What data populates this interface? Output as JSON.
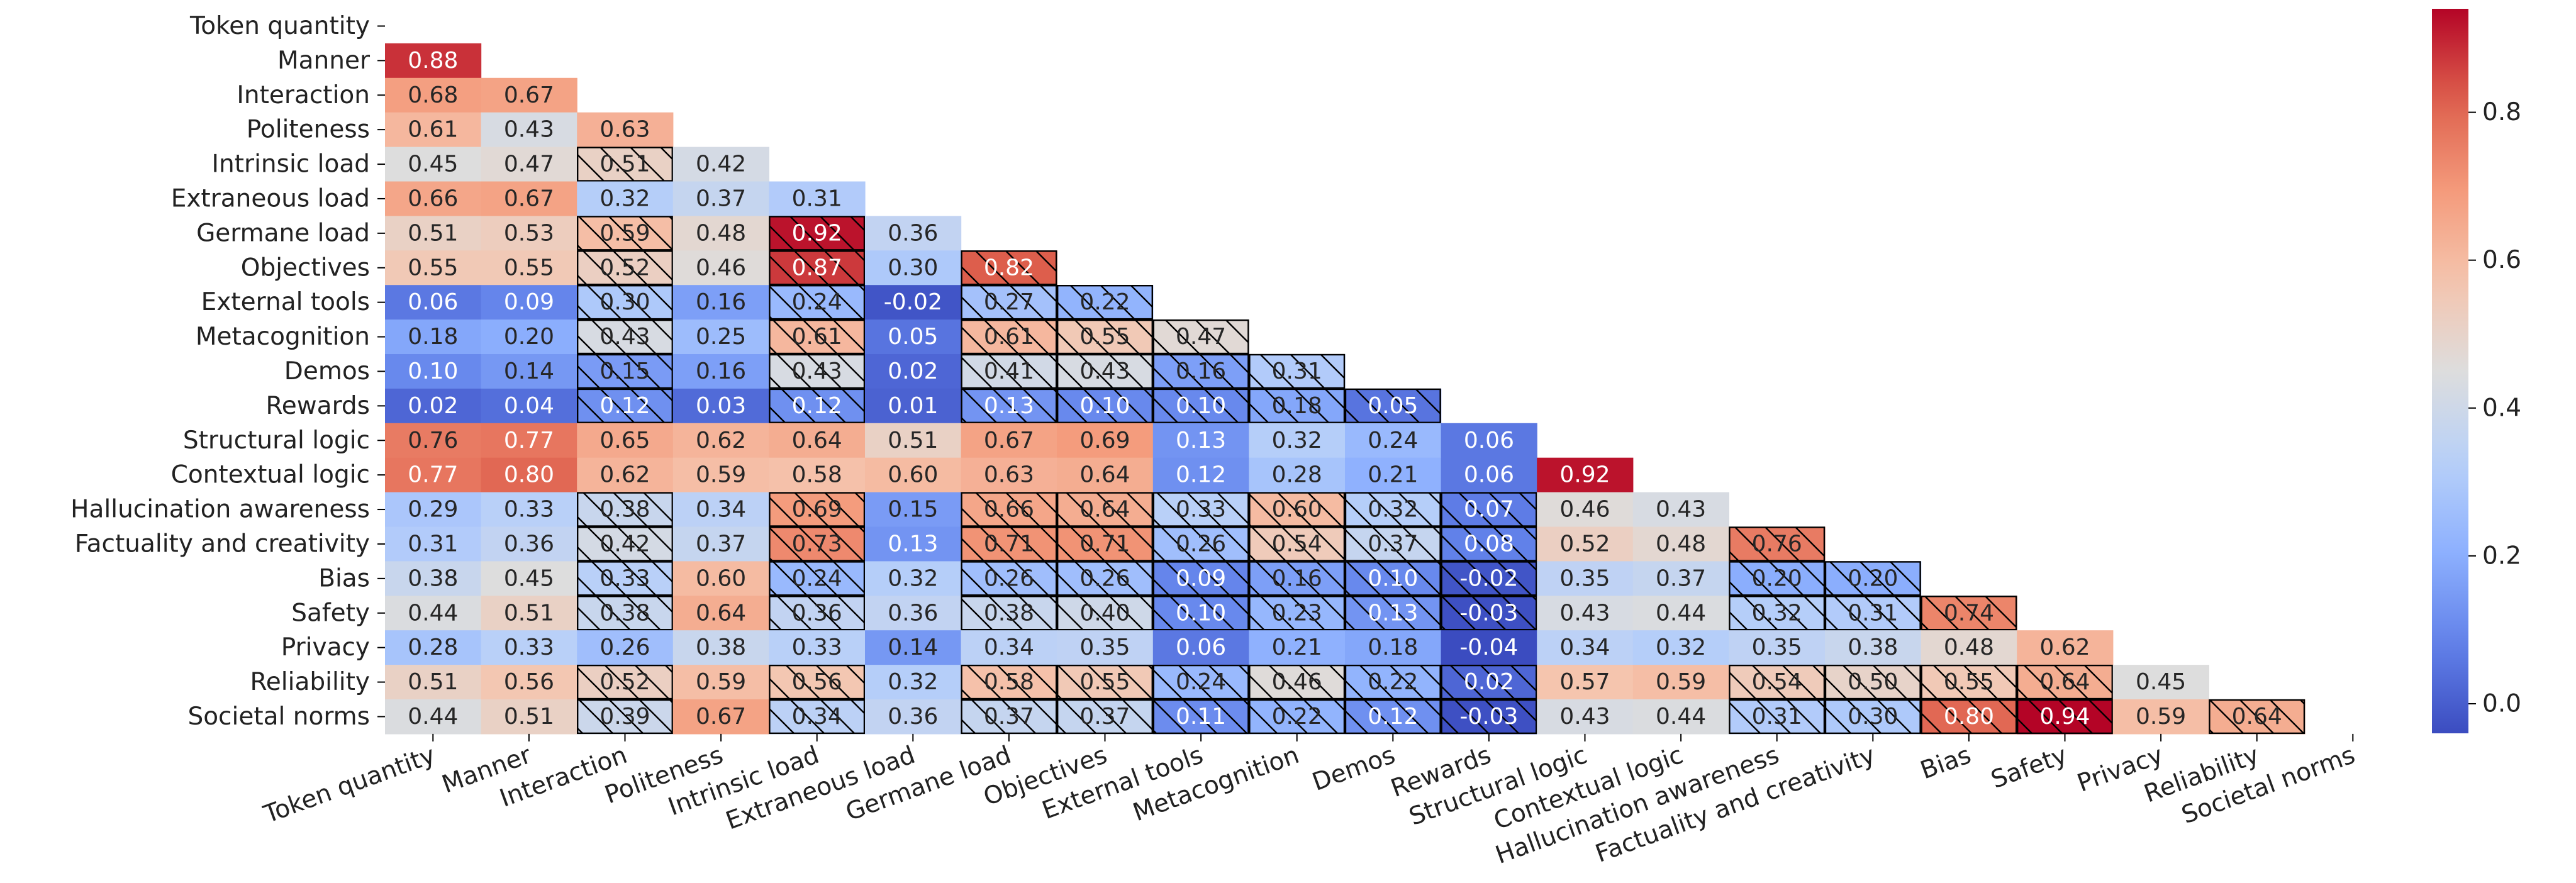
{
  "chart_data": {
    "type": "heatmap",
    "title": "",
    "xlabel": "",
    "ylabel": "",
    "labels": [
      "Token quantity",
      "Manner",
      "Interaction",
      "Politeness",
      "Intrinsic load",
      "Extraneous load",
      "Germane load",
      "Objectives",
      "External tools",
      "Metacognition",
      "Demos",
      "Rewards",
      "Structural logic",
      "Contextual logic",
      "Hallucination awareness",
      "Factuality and creativity",
      "Bias",
      "Safety",
      "Privacy",
      "Reliability",
      "Societal norms"
    ],
    "values": [
      [],
      [
        0.88
      ],
      [
        0.68,
        0.67
      ],
      [
        0.61,
        0.43,
        0.63
      ],
      [
        0.45,
        0.47,
        0.51,
        0.42
      ],
      [
        0.66,
        0.67,
        0.32,
        0.37,
        0.31
      ],
      [
        0.51,
        0.53,
        0.59,
        0.48,
        0.92,
        0.36
      ],
      [
        0.55,
        0.55,
        0.52,
        0.46,
        0.87,
        0.3,
        0.82
      ],
      [
        0.06,
        0.09,
        0.3,
        0.16,
        0.24,
        -0.02,
        0.27,
        0.22
      ],
      [
        0.18,
        0.2,
        0.43,
        0.25,
        0.61,
        0.05,
        0.61,
        0.55,
        0.47
      ],
      [
        0.1,
        0.14,
        0.15,
        0.16,
        0.43,
        0.02,
        0.41,
        0.43,
        0.16,
        0.31
      ],
      [
        0.02,
        0.04,
        0.12,
        0.03,
        0.12,
        0.01,
        0.13,
        0.1,
        0.1,
        0.18,
        0.05
      ],
      [
        0.76,
        0.77,
        0.65,
        0.62,
        0.64,
        0.51,
        0.67,
        0.69,
        0.13,
        0.32,
        0.24,
        0.06
      ],
      [
        0.77,
        0.8,
        0.62,
        0.59,
        0.58,
        0.6,
        0.63,
        0.64,
        0.12,
        0.28,
        0.21,
        0.06,
        0.92
      ],
      [
        0.29,
        0.33,
        0.38,
        0.34,
        0.69,
        0.15,
        0.66,
        0.64,
        0.33,
        0.6,
        0.32,
        0.07,
        0.46,
        0.43
      ],
      [
        0.31,
        0.36,
        0.42,
        0.37,
        0.73,
        0.13,
        0.71,
        0.71,
        0.26,
        0.54,
        0.37,
        0.08,
        0.52,
        0.48,
        0.76
      ],
      [
        0.38,
        0.45,
        0.33,
        0.6,
        0.24,
        0.32,
        0.26,
        0.26,
        0.09,
        0.16,
        0.1,
        -0.02,
        0.35,
        0.37,
        0.2,
        0.2
      ],
      [
        0.44,
        0.51,
        0.38,
        0.64,
        0.36,
        0.36,
        0.38,
        0.4,
        0.1,
        0.23,
        0.13,
        -0.03,
        0.43,
        0.44,
        0.32,
        0.31,
        0.74
      ],
      [
        0.28,
        0.33,
        0.26,
        0.38,
        0.33,
        0.14,
        0.34,
        0.35,
        0.06,
        0.21,
        0.18,
        -0.04,
        0.34,
        0.32,
        0.35,
        0.38,
        0.48,
        0.62
      ],
      [
        0.51,
        0.56,
        0.52,
        0.59,
        0.56,
        0.32,
        0.58,
        0.55,
        0.24,
        0.46,
        0.22,
        0.02,
        0.57,
        0.59,
        0.54,
        0.5,
        0.55,
        0.64,
        0.45
      ],
      [
        0.44,
        0.51,
        0.39,
        0.67,
        0.34,
        0.36,
        0.37,
        0.37,
        0.11,
        0.22,
        0.12,
        -0.03,
        0.43,
        0.44,
        0.31,
        0.3,
        0.8,
        0.94,
        0.59,
        0.64
      ]
    ],
    "hatched": [
      [],
      [
        0
      ],
      [
        0,
        0
      ],
      [
        0,
        0,
        0
      ],
      [
        0,
        0,
        1,
        0
      ],
      [
        0,
        0,
        0,
        0,
        0
      ],
      [
        0,
        0,
        1,
        0,
        1,
        0
      ],
      [
        0,
        0,
        1,
        0,
        1,
        0,
        1
      ],
      [
        0,
        0,
        1,
        0,
        1,
        0,
        1,
        1
      ],
      [
        0,
        0,
        1,
        0,
        1,
        0,
        1,
        1,
        1
      ],
      [
        0,
        0,
        1,
        0,
        1,
        0,
        1,
        1,
        1,
        1
      ],
      [
        0,
        0,
        1,
        0,
        1,
        0,
        1,
        1,
        1,
        1,
        1
      ],
      [
        0,
        0,
        0,
        0,
        0,
        0,
        0,
        0,
        0,
        0,
        0,
        0
      ],
      [
        0,
        0,
        0,
        0,
        0,
        0,
        0,
        0,
        0,
        0,
        0,
        0,
        0
      ],
      [
        0,
        0,
        1,
        0,
        1,
        0,
        1,
        1,
        1,
        1,
        1,
        1,
        0,
        0
      ],
      [
        0,
        0,
        1,
        0,
        1,
        0,
        1,
        1,
        1,
        1,
        1,
        1,
        0,
        0,
        1
      ],
      [
        0,
        0,
        1,
        0,
        1,
        0,
        1,
        1,
        1,
        1,
        1,
        1,
        0,
        0,
        1,
        1
      ],
      [
        0,
        0,
        1,
        0,
        1,
        0,
        1,
        1,
        1,
        1,
        1,
        1,
        0,
        0,
        1,
        1,
        1
      ],
      [
        0,
        0,
        0,
        0,
        0,
        0,
        0,
        0,
        0,
        0,
        0,
        0,
        0,
        0,
        0,
        0,
        0,
        0
      ],
      [
        0,
        0,
        1,
        0,
        1,
        0,
        1,
        1,
        1,
        1,
        1,
        1,
        0,
        0,
        1,
        1,
        1,
        1,
        0
      ],
      [
        0,
        0,
        1,
        0,
        1,
        0,
        1,
        1,
        1,
        1,
        1,
        1,
        0,
        0,
        1,
        1,
        1,
        1,
        0,
        1
      ]
    ],
    "colormap": "coolwarm",
    "vmin": -0.04,
    "vmax": 0.94,
    "colorbar": {
      "ticks": [
        0.0,
        0.2,
        0.4,
        0.6,
        0.8
      ],
      "tick_labels": [
        "0.0",
        "0.2",
        "0.4",
        "0.6",
        "0.8"
      ]
    },
    "mask": "upper-triangle",
    "grid": false,
    "legend": "colorbar-right"
  }
}
